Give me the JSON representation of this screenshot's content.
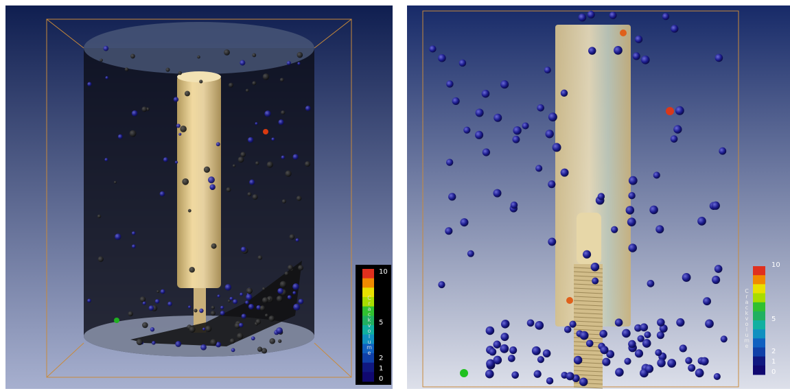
{
  "panels": [
    {
      "legend": {
        "title": "Crackvolume",
        "ticks": [
          "10",
          "5",
          "2",
          "1",
          "0"
        ]
      }
    },
    {
      "legend": {
        "title": "Crackvolume",
        "ticks": [
          "10",
          "5",
          "2",
          "1",
          "0"
        ]
      }
    }
  ]
}
